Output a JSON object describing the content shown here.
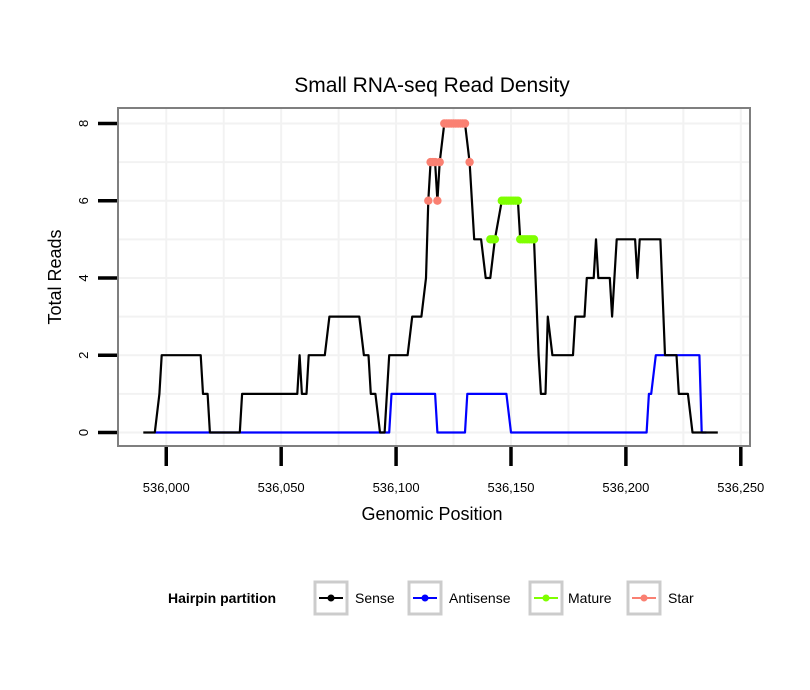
{
  "chart_data": {
    "type": "line",
    "title": "Small RNA-seq Read Density",
    "xlabel": "Genomic Position",
    "ylabel": "Total Reads",
    "xlim": [
      535979,
      536254
    ],
    "ylim": [
      -0.35,
      8.4
    ],
    "x_ticks": [
      536000,
      536050,
      536100,
      536150,
      536200,
      536250
    ],
    "x_tick_labels": [
      "536,000",
      "536,050",
      "536,100",
      "536,150",
      "536,200",
      "536,250"
    ],
    "y_ticks": [
      0,
      2,
      4,
      6,
      8
    ],
    "y_tick_labels": [
      "0",
      "2",
      "4",
      "6",
      "8"
    ],
    "grid": true,
    "legend": {
      "title": "Hairpin partition",
      "position": "bottom",
      "entries": [
        {
          "name": "Sense",
          "color": "#000000"
        },
        {
          "name": "Antisense",
          "color": "#0000FF"
        },
        {
          "name": "Mature",
          "color": "#7FFF00"
        },
        {
          "name": "Star",
          "color": "#FA8072"
        }
      ]
    },
    "series": [
      {
        "name": "Sense",
        "color": "#000000",
        "points": [
          [
            535990,
            0
          ],
          [
            535995,
            0
          ],
          [
            535997,
            1
          ],
          [
            535998,
            2
          ],
          [
            536015,
            2
          ],
          [
            536016,
            1
          ],
          [
            536018,
            1
          ],
          [
            536019,
            0
          ],
          [
            536032,
            0
          ],
          [
            536033,
            1
          ],
          [
            536057,
            1
          ],
          [
            536058,
            2
          ],
          [
            536059,
            1
          ],
          [
            536061,
            1
          ],
          [
            536062,
            2
          ],
          [
            536069,
            2
          ],
          [
            536071,
            3
          ],
          [
            536084,
            3
          ],
          [
            536086,
            2
          ],
          [
            536088,
            2
          ],
          [
            536089,
            1
          ],
          [
            536091,
            1
          ],
          [
            536093,
            0
          ],
          [
            536095,
            0
          ],
          [
            536097,
            2
          ],
          [
            536105,
            2
          ],
          [
            536107,
            3
          ],
          [
            536111,
            3
          ],
          [
            536113,
            4
          ],
          [
            536114,
            6
          ],
          [
            536115,
            7
          ],
          [
            536117,
            7
          ],
          [
            536118,
            6
          ],
          [
            536119,
            7
          ],
          [
            536121,
            8
          ],
          [
            536130,
            8
          ],
          [
            536132,
            7
          ],
          [
            536134,
            5
          ],
          [
            536137,
            5
          ],
          [
            536139,
            4
          ],
          [
            536141,
            4
          ],
          [
            536143,
            5
          ],
          [
            536146,
            6
          ],
          [
            536153,
            6
          ],
          [
            536154,
            5
          ],
          [
            536160,
            5
          ],
          [
            536162,
            2
          ],
          [
            536163,
            1
          ],
          [
            536165,
            1
          ],
          [
            536166,
            3
          ],
          [
            536168,
            2
          ],
          [
            536177,
            2
          ],
          [
            536178,
            3
          ],
          [
            536182,
            3
          ],
          [
            536183,
            4
          ],
          [
            536186,
            4
          ],
          [
            536187,
            5
          ],
          [
            536188,
            4
          ],
          [
            536193,
            4
          ],
          [
            536194,
            3
          ],
          [
            536196,
            5
          ],
          [
            536204,
            5
          ],
          [
            536205,
            4
          ],
          [
            536206,
            5
          ],
          [
            536215,
            5
          ],
          [
            536217,
            2
          ],
          [
            536222,
            2
          ],
          [
            536223,
            1
          ],
          [
            536227,
            1
          ],
          [
            536229,
            0
          ],
          [
            536240,
            0
          ]
        ]
      },
      {
        "name": "Antisense",
        "color": "#0000FF",
        "points": [
          [
            535995,
            0
          ],
          [
            536097,
            0
          ],
          [
            536098,
            1
          ],
          [
            536117,
            1
          ],
          [
            536118,
            0
          ],
          [
            536130,
            0
          ],
          [
            536131,
            1
          ],
          [
            536148,
            1
          ],
          [
            536150,
            0
          ],
          [
            536209,
            0
          ],
          [
            536210,
            1
          ],
          [
            536211,
            1
          ],
          [
            536213,
            2
          ],
          [
            536232,
            2
          ],
          [
            536233,
            0
          ],
          [
            536235,
            0
          ]
        ]
      },
      {
        "name": "Mature",
        "color": "#7FFF00",
        "points": [
          [
            536141,
            5
          ],
          [
            536142,
            5
          ],
          [
            536143,
            5
          ],
          [
            536146,
            6
          ],
          [
            536147,
            6
          ],
          [
            536148,
            6
          ],
          [
            536149,
            6
          ],
          [
            536150,
            6
          ],
          [
            536151,
            6
          ],
          [
            536152,
            6
          ],
          [
            536153,
            6
          ],
          [
            536154,
            5
          ],
          [
            536155,
            5
          ],
          [
            536156,
            5
          ],
          [
            536157,
            5
          ],
          [
            536158,
            5
          ],
          [
            536159,
            5
          ],
          [
            536160,
            5
          ]
        ]
      },
      {
        "name": "Star",
        "color": "#FA8072",
        "points": [
          [
            536114,
            6
          ],
          [
            536115,
            7
          ],
          [
            536116,
            7
          ],
          [
            536117,
            7
          ],
          [
            536118,
            6
          ],
          [
            536119,
            7
          ],
          [
            536121,
            8
          ],
          [
            536122,
            8
          ],
          [
            536123,
            8
          ],
          [
            536124,
            8
          ],
          [
            536125,
            8
          ],
          [
            536126,
            8
          ],
          [
            536127,
            8
          ],
          [
            536128,
            8
          ],
          [
            536129,
            8
          ],
          [
            536130,
            8
          ],
          [
            536132,
            7
          ]
        ]
      }
    ]
  }
}
